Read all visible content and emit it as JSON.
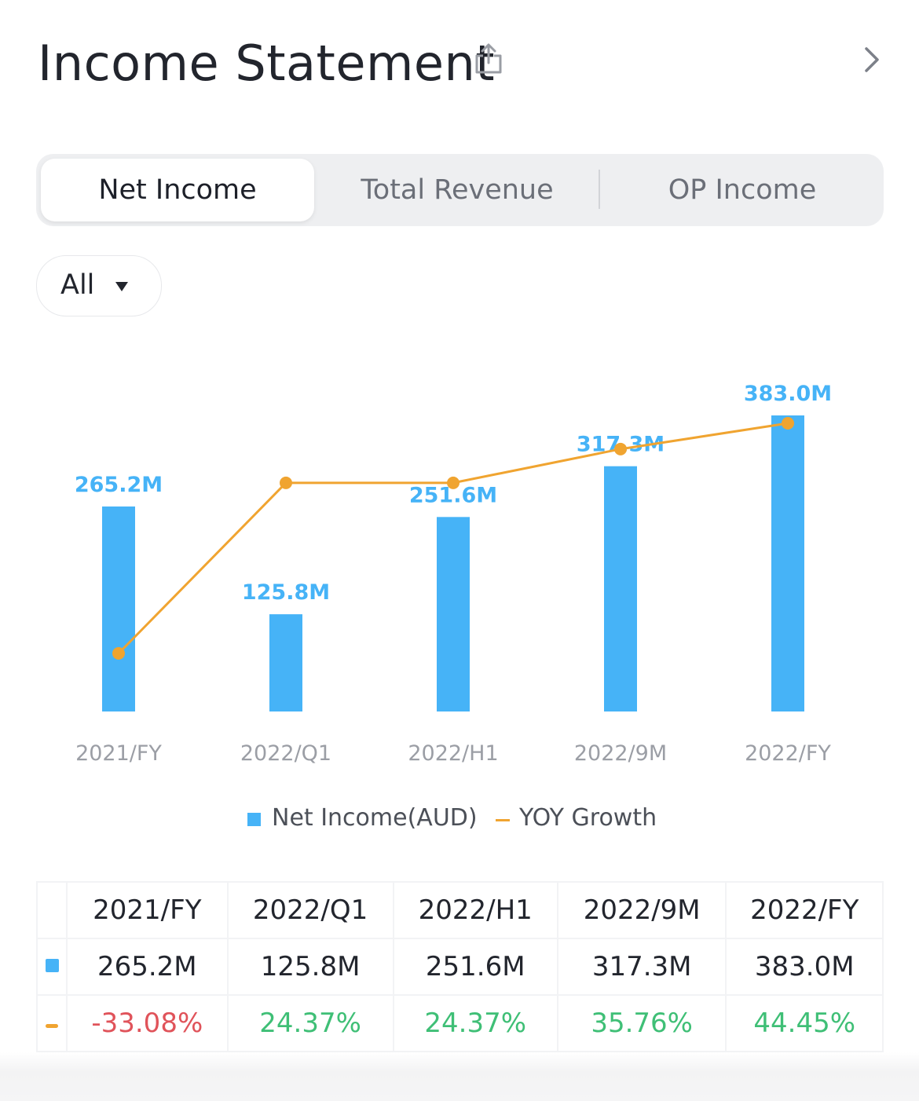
{
  "header": {
    "title": "Income Statement"
  },
  "tabs": [
    {
      "label": "Net Income",
      "active": true
    },
    {
      "label": "Total Revenue",
      "active": false
    },
    {
      "label": "OP Income",
      "active": false
    }
  ],
  "filter": {
    "label": "All"
  },
  "colors": {
    "bar": "#46b3f7",
    "line": "#f0a430",
    "negative": "#e0535a",
    "positive": "#3fbf76"
  },
  "chart_data": {
    "type": "bar",
    "categories": [
      "2021/FY",
      "2022/Q1",
      "2022/H1",
      "2022/9M",
      "2022/FY"
    ],
    "series": [
      {
        "name": "Net Income(AUD)",
        "type": "bar",
        "values": [
          265.2,
          125.8,
          251.6,
          317.3,
          383.0
        ],
        "labels": [
          "265.2M",
          "125.8M",
          "251.6M",
          "317.3M",
          "383.0M"
        ]
      },
      {
        "name": "YOY Growth",
        "type": "line",
        "values": [
          -33.08,
          24.37,
          24.37,
          35.76,
          44.45
        ]
      }
    ],
    "legend": [
      "Net Income(AUD)",
      "YOY Growth"
    ],
    "legend_position": "bottom",
    "grid": false
  },
  "table": {
    "headers": [
      "2021/FY",
      "2022/Q1",
      "2022/H1",
      "2022/9M",
      "2022/FY"
    ],
    "values": [
      "265.2M",
      "125.8M",
      "251.6M",
      "317.3M",
      "383.0M"
    ],
    "growth": [
      "-33.08%",
      "24.37%",
      "24.37%",
      "35.76%",
      "44.45%"
    ]
  }
}
